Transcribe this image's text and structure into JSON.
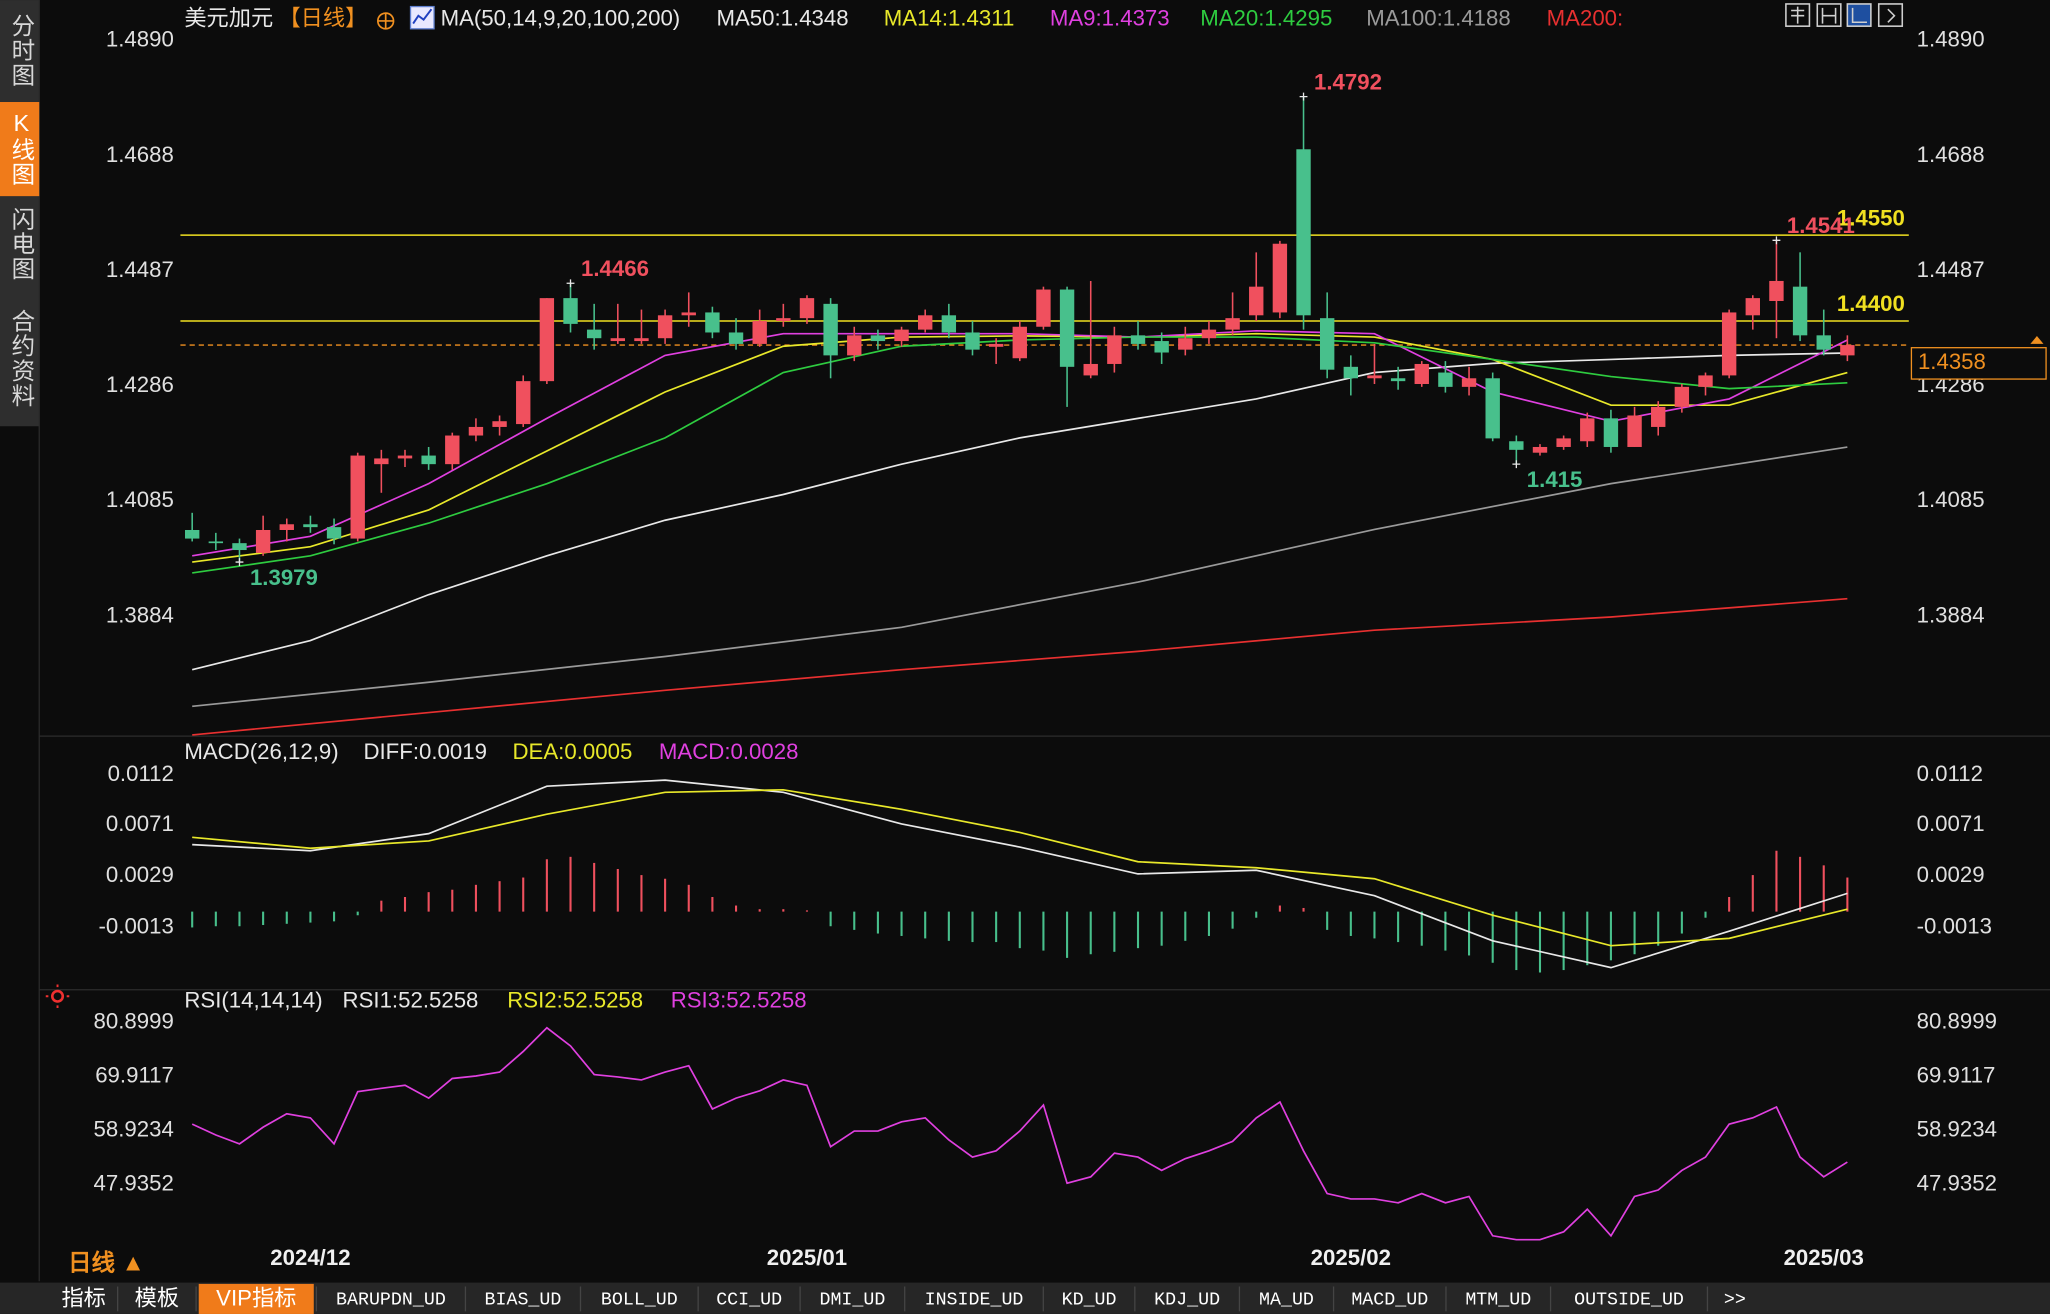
{
  "sidebar": {
    "tabs": [
      "分时图",
      "K线图",
      "闪电图",
      "合约资料"
    ],
    "active": 1
  },
  "chart_data": [
    {
      "type": "candlestick",
      "title": "美元加元",
      "period": "【日线】",
      "indicator": "MA(50,14,9,20,100,200)",
      "categories": [
        null,
        null,
        null,
        null,
        null,
        "2024/12",
        null,
        null,
        null,
        null,
        null,
        null,
        null,
        null,
        null,
        null,
        null,
        null,
        null,
        null,
        null,
        null,
        null,
        null,
        null,
        null,
        "2025/01",
        null,
        null,
        null,
        null,
        null,
        null,
        null,
        null,
        null,
        null,
        null,
        null,
        null,
        null,
        null,
        null,
        null,
        null,
        null,
        null,
        null,
        null,
        "2025/02",
        null,
        null,
        null,
        null,
        null,
        null,
        null,
        null,
        null,
        null,
        null,
        null,
        null,
        null,
        null,
        null,
        null,
        null,
        null,
        "2025/03",
        null
      ],
      "open": [
        1.4035,
        1.4015,
        1.4012,
        1.3995,
        1.4035,
        1.4045,
        1.404,
        1.402,
        1.415,
        1.416,
        1.4165,
        1.415,
        1.42,
        1.4215,
        1.422,
        1.4295,
        1.444,
        1.4385,
        1.4365,
        1.4365,
        1.437,
        1.441,
        1.4415,
        1.438,
        1.436,
        1.44,
        1.4405,
        1.443,
        1.434,
        1.4375,
        1.4365,
        1.4385,
        1.441,
        1.438,
        1.4355,
        1.4335,
        1.439,
        1.4455,
        1.4305,
        1.4325,
        1.4375,
        1.4365,
        1.435,
        1.437,
        1.4385,
        1.441,
        1.4415,
        1.47,
        1.4405,
        1.432,
        1.43,
        1.43,
        1.429,
        1.431,
        1.4285,
        1.43,
        1.419,
        1.417,
        1.418,
        1.419,
        1.423,
        1.418,
        1.4215,
        1.425,
        1.4285,
        1.4305,
        1.441,
        1.4435,
        1.446,
        1.4375,
        1.434
      ],
      "high": [
        1.4065,
        1.403,
        1.402,
        1.406,
        1.4055,
        1.406,
        1.4055,
        1.417,
        1.4175,
        1.4175,
        1.418,
        1.4205,
        1.423,
        1.4235,
        1.4305,
        1.444,
        1.4466,
        1.443,
        1.443,
        1.442,
        1.442,
        1.445,
        1.4425,
        1.4405,
        1.442,
        1.443,
        1.4445,
        1.444,
        1.439,
        1.4385,
        1.439,
        1.442,
        1.443,
        1.44,
        1.437,
        1.44,
        1.446,
        1.446,
        1.447,
        1.439,
        1.44,
        1.438,
        1.439,
        1.44,
        1.445,
        1.452,
        1.454,
        1.4792,
        1.445,
        1.434,
        1.436,
        1.432,
        1.433,
        1.433,
        1.432,
        1.431,
        1.42,
        1.4185,
        1.42,
        1.424,
        1.4245,
        1.425,
        1.426,
        1.429,
        1.431,
        1.442,
        1.4445,
        1.4541,
        1.452,
        1.442,
        1.4375
      ],
      "low": [
        1.4015,
        1.4,
        1.3979,
        1.399,
        1.4015,
        1.403,
        1.401,
        1.4015,
        1.41,
        1.4145,
        1.414,
        1.414,
        1.419,
        1.42,
        1.4215,
        1.429,
        1.438,
        1.435,
        1.436,
        1.436,
        1.436,
        1.439,
        1.437,
        1.435,
        1.4355,
        1.439,
        1.4395,
        1.43,
        1.433,
        1.435,
        1.4355,
        1.438,
        1.437,
        1.434,
        1.4325,
        1.433,
        1.4385,
        1.425,
        1.43,
        1.431,
        1.435,
        1.4325,
        1.434,
        1.436,
        1.4375,
        1.44,
        1.4405,
        1.4385,
        1.43,
        1.427,
        1.429,
        1.428,
        1.4285,
        1.4275,
        1.427,
        1.419,
        1.415,
        1.4165,
        1.4175,
        1.418,
        1.417,
        1.418,
        1.42,
        1.424,
        1.427,
        1.43,
        1.4385,
        1.437,
        1.4365,
        1.434,
        1.433
      ],
      "close": [
        1.402,
        1.4012,
        1.4,
        1.4035,
        1.4045,
        1.404,
        1.402,
        1.4165,
        1.416,
        1.4165,
        1.415,
        1.42,
        1.4215,
        1.4225,
        1.4295,
        1.444,
        1.4395,
        1.437,
        1.437,
        1.437,
        1.441,
        1.4415,
        1.438,
        1.436,
        1.44,
        1.4405,
        1.444,
        1.434,
        1.4375,
        1.4365,
        1.4385,
        1.441,
        1.438,
        1.435,
        1.436,
        1.439,
        1.4455,
        1.432,
        1.4325,
        1.4375,
        1.436,
        1.4345,
        1.437,
        1.4385,
        1.4405,
        1.446,
        1.4535,
        1.441,
        1.4315,
        1.43,
        1.4305,
        1.4295,
        1.4325,
        1.4285,
        1.43,
        1.4195,
        1.4175,
        1.418,
        1.4195,
        1.423,
        1.418,
        1.4235,
        1.425,
        1.4285,
        1.4305,
        1.4415,
        1.444,
        1.447,
        1.4375,
        1.435,
        1.4358
      ],
      "up_color": "#f0505e",
      "down_color": "#48c08c",
      "series": [
        {
          "name": "MA50:1.4348",
          "color": "#e8e8e8",
          "x": [
            0,
            5,
            10,
            15,
            20,
            25,
            30,
            35,
            40,
            45,
            50,
            55,
            60,
            65,
            70
          ],
          "values": [
            1.3791,
            1.3842,
            1.3922,
            1.399,
            1.4052,
            1.4097,
            1.415,
            1.4196,
            1.423,
            1.4264,
            1.431,
            1.4326,
            1.4333,
            1.434,
            1.4344
          ]
        },
        {
          "name": "MA14:1.4311",
          "color": "#e8e82a",
          "x": [
            0,
            5,
            10,
            15,
            20,
            25,
            30,
            35,
            40,
            45,
            50,
            55,
            60,
            65,
            70
          ],
          "values": [
            1.3979,
            1.4006,
            1.407,
            1.4173,
            1.4276,
            1.4356,
            1.4372,
            1.4374,
            1.4372,
            1.4378,
            1.4372,
            1.4333,
            1.4253,
            1.4253,
            1.431
          ]
        },
        {
          "name": "MA9:1.4373",
          "color": "#e040e0",
          "x": [
            0,
            5,
            10,
            15,
            20,
            25,
            30,
            35,
            40,
            45,
            50,
            55,
            60,
            65,
            70
          ],
          "values": [
            1.399,
            1.4024,
            1.4116,
            1.423,
            1.434,
            1.4378,
            1.4378,
            1.4378,
            1.4372,
            1.4383,
            1.4378,
            1.4276,
            1.4225,
            1.4264,
            1.4367
          ]
        },
        {
          "name": "MA20:1.4295",
          "color": "#2ecc40",
          "x": [
            0,
            5,
            10,
            15,
            20,
            25,
            30,
            35,
            40,
            45,
            50,
            55,
            60,
            65,
            70
          ],
          "values": [
            1.396,
            1.399,
            1.4047,
            1.4116,
            1.4196,
            1.431,
            1.4356,
            1.4367,
            1.4372,
            1.4372,
            1.4362,
            1.4333,
            1.4303,
            1.4282,
            1.4292
          ]
        },
        {
          "name": "MA100:1.4188",
          "color": "#9a9a9a",
          "x": [
            0,
            10,
            20,
            30,
            40,
            50,
            60,
            70
          ],
          "values": [
            1.3727,
            1.3769,
            1.3814,
            1.3865,
            1.3944,
            1.4036,
            1.4116,
            1.418
          ]
        },
        {
          "name": "MA200:",
          "color": "#e83030",
          "x": [
            0,
            10,
            20,
            30,
            40,
            50,
            60,
            70
          ],
          "values": [
            1.3677,
            1.3716,
            1.3755,
            1.3791,
            1.3823,
            1.386,
            1.3883,
            1.3915
          ]
        }
      ],
      "hlines": [
        {
          "value": 1.455,
          "label": "1.4550",
          "color": "#f0e020"
        },
        {
          "value": 1.44,
          "label": "1.4400",
          "color": "#f0e020"
        }
      ],
      "current_price": {
        "value": 1.4358,
        "label": "1.4358",
        "color": "#f09020"
      },
      "annotations": [
        {
          "index": 47,
          "value": 1.4792,
          "side": "high"
        },
        {
          "index": 16,
          "value": 1.4466,
          "side": "high"
        },
        {
          "index": 67,
          "value": 1.4541,
          "side": "high"
        },
        {
          "index": 2,
          "value": 1.3979,
          "side": "low"
        },
        {
          "index": 56,
          "value": 1.415,
          "side": "low"
        }
      ],
      "ylim": [
        1.3675,
        1.4915
      ],
      "yticks": [
        {
          "value": 1.489,
          "label": "1.4890"
        },
        1.4688,
        1.4487,
        1.4286,
        1.4085,
        1.3884
      ],
      "grid": false
    },
    {
      "type": "macd",
      "title": "MACD(26,12,9)",
      "series": [
        {
          "name": "DIFF:0.0019",
          "color": "#e8e8e8",
          "x": [
            0,
            5,
            10,
            15,
            20,
            25,
            30,
            35,
            40,
            45,
            50,
            55,
            60,
            65,
            70
          ],
          "values": [
            0.0055,
            0.005,
            0.0064,
            0.0103,
            0.0108,
            0.0098,
            0.0072,
            0.0053,
            0.0031,
            0.0034,
            0.0013,
            -0.0024,
            -0.0046,
            -0.0016,
            0.0015
          ]
        },
        {
          "name": "DEA:0.0005",
          "color": "#e8e82a",
          "x": [
            0,
            5,
            10,
            15,
            20,
            25,
            30,
            35,
            40,
            45,
            50,
            55,
            60,
            65,
            70
          ],
          "values": [
            0.0061,
            0.0052,
            0.0058,
            0.008,
            0.0098,
            0.01,
            0.0084,
            0.0065,
            0.0041,
            0.0036,
            0.0027,
            -0.0003,
            -0.0028,
            -0.0022,
            0.0002
          ]
        }
      ],
      "histogram": {
        "name": "MACD:0.0028",
        "color": "#e040e0",
        "up_color": "#f0505e",
        "down_color": "#48c08c",
        "values": [
          -0.0013,
          -0.0012,
          -0.0012,
          -0.0011,
          -0.001,
          -0.0009,
          -0.0008,
          -0.0003,
          0.0009,
          0.0012,
          0.0016,
          0.0018,
          0.0022,
          0.0025,
          0.0028,
          0.0043,
          0.0045,
          0.004,
          0.0035,
          0.003,
          0.0027,
          0.0022,
          0.0012,
          0.0005,
          0.0002,
          0.0002,
          0.0001,
          -0.0012,
          -0.0015,
          -0.0018,
          -0.002,
          -0.0022,
          -0.0024,
          -0.0025,
          -0.0025,
          -0.003,
          -0.0032,
          -0.0038,
          -0.0035,
          -0.0033,
          -0.003,
          -0.0028,
          -0.0024,
          -0.002,
          -0.0014,
          -0.0005,
          0.0005,
          0.0003,
          -0.0015,
          -0.002,
          -0.0022,
          -0.0025,
          -0.0028,
          -0.0032,
          -0.0036,
          -0.0042,
          -0.0048,
          -0.005,
          -0.0048,
          -0.0044,
          -0.004,
          -0.0035,
          -0.0028,
          -0.0018,
          -0.0005,
          0.0012,
          0.003,
          0.005,
          0.0045,
          0.0038,
          0.0028
        ]
      },
      "ylim": [
        -0.0062,
        0.0142
      ],
      "yticks": [
        0.0112,
        0.0071,
        0.0029,
        -0.0013
      ],
      "grid": false
    },
    {
      "type": "line",
      "title": "RSI(14,14,14)",
      "legend": [
        {
          "name": "RSI1:52.5258",
          "color": "#e8e8e8"
        },
        {
          "name": "RSI2:52.5258",
          "color": "#e8e82a"
        }
      ],
      "series": [
        {
          "name": "RSI3:52.5258",
          "color": "#e040e0",
          "values": [
            60.2,
            58.0,
            56.2,
            59.6,
            62.3,
            61.5,
            56.2,
            66.8,
            67.5,
            68.1,
            65.5,
            69.5,
            70.0,
            70.8,
            75.0,
            79.8,
            76.1,
            70.3,
            69.8,
            69.2,
            70.8,
            72.1,
            63.3,
            65.5,
            67.0,
            69.2,
            68.1,
            55.6,
            58.8,
            58.8,
            60.7,
            61.5,
            57.0,
            53.5,
            54.8,
            58.8,
            64.1,
            48.2,
            49.5,
            54.3,
            53.5,
            50.8,
            53.2,
            54.8,
            56.7,
            61.5,
            64.7,
            54.8,
            46.1,
            45.0,
            45.0,
            44.2,
            46.1,
            44.2,
            45.5,
            37.5,
            36.7,
            36.7,
            38.3,
            42.9,
            37.5,
            45.5,
            46.8,
            50.8,
            53.5,
            60.2,
            61.5,
            63.7,
            53.5,
            49.5,
            52.5
          ]
        }
      ],
      "ylim": [
        34.9,
        82.76
      ],
      "yticks": [
        80.8999,
        69.9117,
        58.9234,
        47.9352
      ],
      "grid": false
    }
  ],
  "footer": {
    "period_toggle": "日线 ▲",
    "tabs": [
      "指标",
      "模板",
      "VIP指标",
      "BARUPDN_UD",
      "BIAS_UD",
      "BOLL_UD",
      "CCI_UD",
      "DMI_UD",
      "INSIDE_UD",
      "KD_UD",
      "KDJ_UD",
      "MA_UD",
      "MACD_UD",
      "MTM_UD",
      "OUTSIDE_UD",
      ">>"
    ],
    "active": 2
  }
}
